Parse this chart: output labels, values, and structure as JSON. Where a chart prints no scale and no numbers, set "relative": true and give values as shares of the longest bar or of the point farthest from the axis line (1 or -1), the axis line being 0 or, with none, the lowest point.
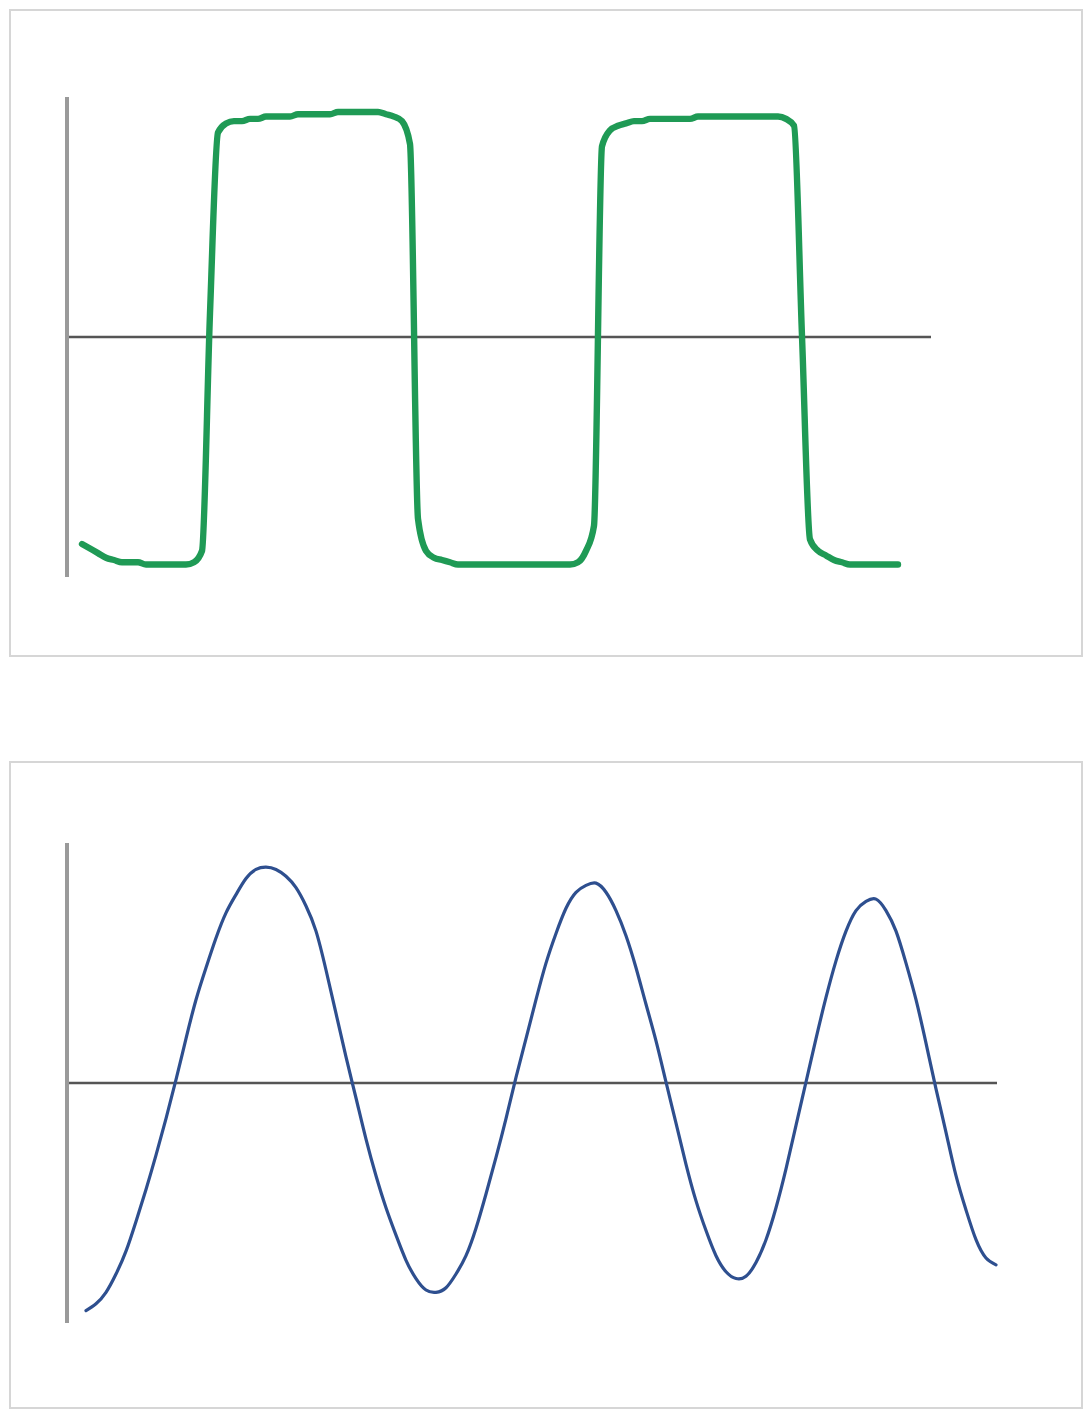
{
  "chart_data": [
    {
      "type": "line",
      "relative": true,
      "categories": [
        null,
        null,
        null,
        null,
        null,
        null,
        null,
        null,
        null,
        null,
        null,
        null,
        null,
        null,
        null,
        null,
        null,
        null,
        null,
        null,
        null,
        null,
        null,
        null,
        null,
        null,
        null,
        null,
        null,
        null,
        null,
        null,
        null,
        null,
        null,
        null,
        null,
        null,
        null,
        null,
        null,
        null,
        null,
        null,
        null,
        null,
        null,
        null,
        null,
        null,
        null,
        null,
        null,
        null,
        null,
        null,
        null,
        null,
        null,
        null,
        null,
        null,
        null,
        null,
        null,
        null,
        null,
        null,
        null,
        null,
        null,
        null,
        null,
        null,
        null,
        null,
        null,
        null,
        null,
        null,
        null,
        null,
        null,
        null,
        null,
        null,
        null,
        null,
        null,
        null,
        null,
        null,
        null,
        null,
        null,
        null,
        null,
        null,
        null,
        null,
        null,
        null,
        null,
        null,
        null,
        null,
        null,
        null,
        null
      ],
      "series": [
        {
          "color": "#1f9a55",
          "values": [
            null,
            null,
            -0.91,
            -0.93,
            -0.95,
            -0.97,
            -0.98,
            -0.99,
            -0.99,
            -0.99,
            -1.0,
            -1.0,
            -1.0,
            -1.0,
            -1.0,
            -1.0,
            -0.99,
            -0.94,
            0.1,
            0.89,
            0.93,
            0.94,
            0.94,
            0.95,
            0.95,
            0.96,
            0.96,
            0.96,
            0.96,
            0.97,
            0.97,
            0.97,
            0.97,
            0.97,
            0.98,
            0.98,
            0.98,
            0.98,
            0.98,
            0.98,
            0.97,
            0.96,
            0.94,
            0.84,
            -0.8,
            -0.94,
            -0.97,
            -0.98,
            -0.99,
            -1.0,
            -1.0,
            -1.0,
            -1.0,
            -1.0,
            -1.0,
            -1.0,
            -1.0,
            -1.0,
            -1.0,
            -1.0,
            -1.0,
            -1.0,
            -1.0,
            -1.0,
            -0.99,
            -0.94,
            -0.83,
            0.83,
            0.9,
            0.92,
            0.93,
            0.94,
            0.94,
            0.95,
            0.95,
            0.95,
            0.95,
            0.95,
            0.95,
            0.96,
            0.96,
            0.96,
            0.96,
            0.96,
            0.96,
            0.96,
            0.96,
            0.96,
            0.96,
            0.96,
            0.95,
            0.92,
            0.0,
            -0.89,
            -0.94,
            -0.96,
            -0.98,
            -0.99,
            -1.0,
            -1.0,
            -1.0,
            -1.0,
            -1.0,
            -1.0,
            -1.0,
            null,
            null,
            null,
            null
          ]
        }
      ]
    },
    {
      "type": "line",
      "relative": true,
      "categories": [
        null,
        null,
        null,
        null,
        null,
        null,
        null,
        null,
        null,
        null,
        null,
        null,
        null,
        null,
        null,
        null,
        null,
        null,
        null,
        null,
        null,
        null,
        null,
        null,
        null,
        null,
        null,
        null,
        null,
        null,
        null,
        null,
        null,
        null,
        null,
        null,
        null,
        null,
        null,
        null,
        null,
        null,
        null,
        null,
        null,
        null,
        null,
        null,
        null,
        null,
        null,
        null,
        null,
        null,
        null,
        null,
        null,
        null,
        null,
        null,
        null,
        null,
        null,
        null,
        null,
        null,
        null,
        null,
        null,
        null,
        null,
        null,
        null,
        null,
        null,
        null,
        null,
        null,
        null,
        null,
        null,
        null,
        null,
        null,
        null,
        null,
        null,
        null,
        null,
        null,
        null,
        null,
        null,
        null
      ],
      "series": [
        {
          "color": "#2e4f8f",
          "values": [
            null,
            null,
            -1.0,
            -0.97,
            -0.92,
            -0.84,
            -0.74,
            -0.61,
            -0.47,
            -0.32,
            -0.16,
            0.01,
            0.19,
            0.36,
            0.5,
            0.63,
            0.74,
            0.82,
            0.89,
            0.93,
            0.94,
            0.93,
            0.9,
            0.85,
            0.77,
            0.66,
            0.49,
            0.3,
            0.11,
            -0.07,
            -0.25,
            -0.41,
            -0.55,
            -0.67,
            -0.78,
            -0.86,
            -0.91,
            -0.92,
            -0.9,
            -0.84,
            -0.76,
            -0.64,
            -0.49,
            -0.33,
            -0.16,
            0.02,
            0.19,
            0.36,
            0.52,
            0.65,
            0.76,
            0.83,
            0.86,
            0.87,
            0.83,
            0.75,
            0.64,
            0.5,
            0.34,
            0.18,
            0.0,
            -0.18,
            -0.36,
            -0.52,
            -0.65,
            -0.76,
            -0.83,
            -0.86,
            -0.85,
            -0.79,
            -0.69,
            -0.55,
            -0.38,
            -0.19,
            0.0,
            0.19,
            0.37,
            0.53,
            0.66,
            0.75,
            0.79,
            0.8,
            0.75,
            0.66,
            0.52,
            0.36,
            0.17,
            -0.03,
            -0.22,
            -0.41,
            -0.56,
            -0.69,
            -0.77,
            -0.8
          ]
        }
      ]
    }
  ]
}
